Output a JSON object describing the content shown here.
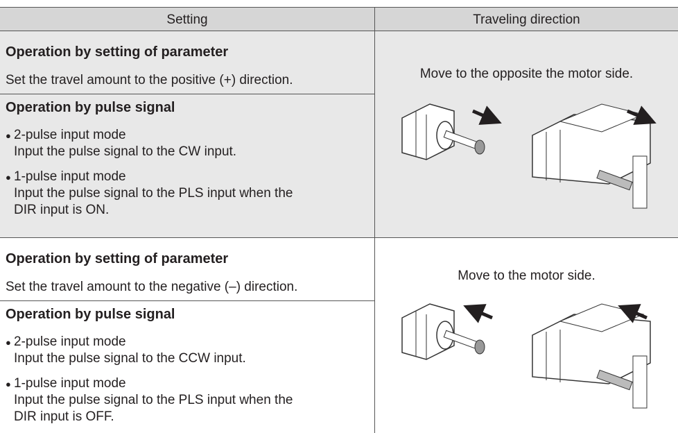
{
  "header": {
    "columns": [
      "Setting",
      "Traveling direction"
    ]
  },
  "rows": [
    {
      "parameter_heading": "Operation by setting of parameter",
      "parameter_text": "Set the travel amount to the positive (+) direction.",
      "pulse_heading": "Operation by pulse signal",
      "modes": [
        {
          "name": "2-pulse input mode",
          "text": [
            "Input the pulse signal to the CW input."
          ]
        },
        {
          "name": "1-pulse input mode",
          "text": [
            "Input the pulse signal to the PLS input when the",
            "DIR input is ON."
          ]
        }
      ],
      "direction": "Move to the opposite the motor side."
    },
    {
      "parameter_heading": "Operation by setting of parameter",
      "parameter_text": "Set the travel amount to the negative (–) direction.",
      "pulse_heading": "Operation by pulse signal",
      "modes": [
        {
          "name": "2-pulse input mode",
          "text": [
            "Input the pulse signal to the CCW input."
          ]
        },
        {
          "name": "1-pulse input mode",
          "text": [
            "Input the pulse signal to the PLS input when the",
            "DIR input is OFF."
          ]
        }
      ],
      "direction": "Move to the motor side."
    }
  ]
}
